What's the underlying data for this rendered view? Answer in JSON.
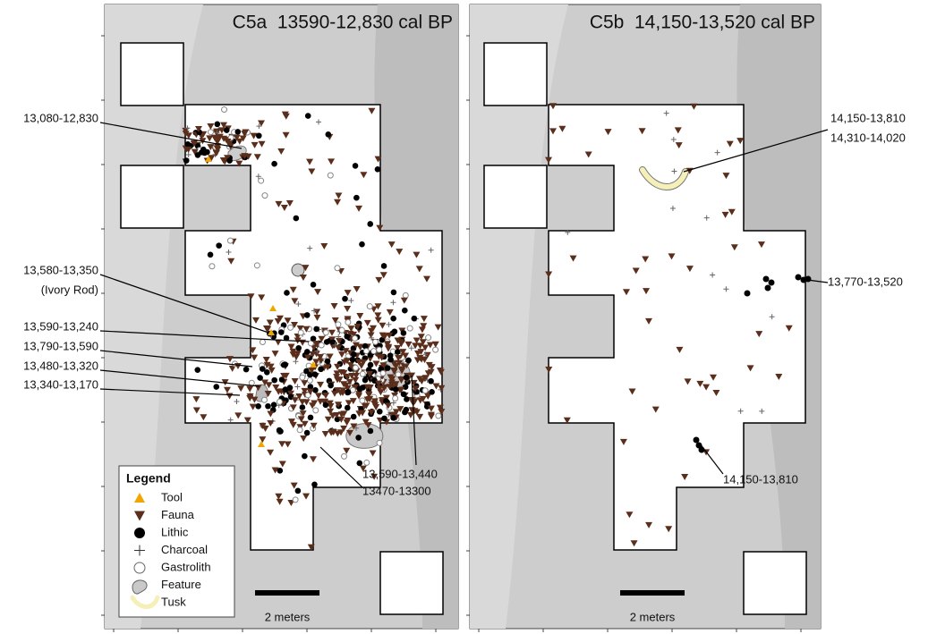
{
  "panels": [
    {
      "title": "C5a  13590-12,830 cal BP",
      "annotations": [
        [
          "13,080-12,830"
        ],
        [
          "13,580-13,350",
          "(Ivory Rod)"
        ],
        [
          "13,590-13,240"
        ],
        [
          "13,790-13,590"
        ],
        [
          "13,480-13,320"
        ],
        [
          "13,340-13,170"
        ],
        [
          "13,590-13,440"
        ],
        [
          "13470-13300"
        ]
      ],
      "scale_label": "2 meters"
    },
    {
      "title": "C5b  14,150-13,520 cal BP",
      "annotations": [
        [
          "14,150-13,810",
          "14,310-14,020"
        ],
        [
          "13,770-13,520"
        ],
        [
          "14,150-13,810"
        ]
      ],
      "scale_label": "2 meters"
    }
  ],
  "legend": {
    "title": "Legend",
    "items": [
      "Tool",
      "Fauna",
      "Lithic",
      "Charcoal",
      "Gastrolith",
      "Feature",
      "Tusk"
    ]
  }
}
